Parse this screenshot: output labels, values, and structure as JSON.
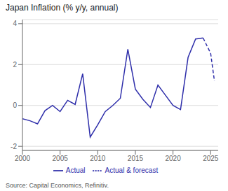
{
  "chart_data": {
    "type": "line",
    "title": "Japan Inflation (% y/y, annual)",
    "annotations": [
      "Source: Capital Economics, Refinitiv."
    ],
    "series": [
      {
        "name": "Actual",
        "color": "#2E2EAA",
        "line_style": "solid",
        "x": [
          2000,
          2001,
          2002,
          2003,
          2004,
          2005,
          2006,
          2007,
          2008,
          2009,
          2010,
          2011,
          2012,
          2013,
          2014,
          2015,
          2016,
          2017,
          2018,
          2019,
          2020,
          2021,
          2022,
          2023,
          2024
        ],
        "values": [
          -0.65,
          -0.75,
          -0.9,
          -0.25,
          0.0,
          -0.3,
          0.25,
          0.05,
          1.55,
          -1.55,
          -0.95,
          -0.3,
          0.0,
          0.35,
          2.75,
          0.8,
          0.3,
          -0.1,
          1.0,
          0.5,
          0.0,
          -0.2,
          2.35,
          3.25,
          3.3
        ]
      },
      {
        "name": "Actual & forecast",
        "color": "#2E2EAA",
        "line_style": "dashed",
        "x": [
          2024,
          2025,
          2025.5
        ],
        "values": [
          3.3,
          2.55,
          1.2
        ]
      }
    ],
    "xlim": [
      2000,
      2026
    ],
    "ylim": [
      -2.2,
      4.2
    ],
    "xticks": [
      2000,
      2005,
      2010,
      2015,
      2020,
      2025
    ],
    "yticks": [
      -2,
      0,
      2,
      4
    ],
    "grid": "y",
    "legend": "bottom"
  }
}
